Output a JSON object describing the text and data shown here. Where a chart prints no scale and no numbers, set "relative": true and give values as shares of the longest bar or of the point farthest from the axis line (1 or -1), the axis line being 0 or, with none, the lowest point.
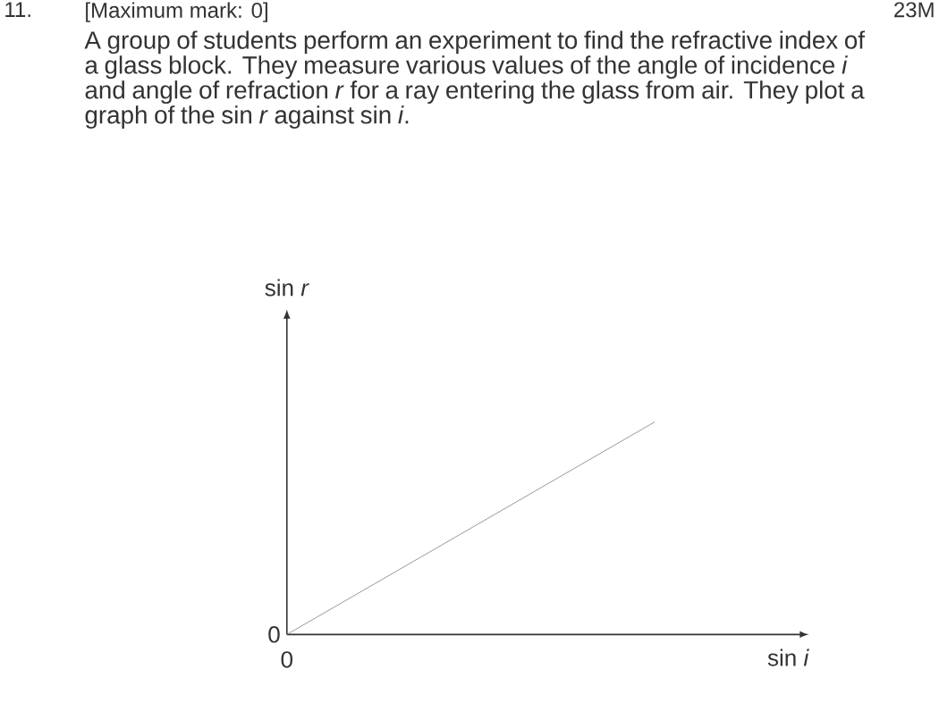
{
  "chart_data": {
    "type": "line",
    "title": "A group of students perform an experiment to find the refractive index of a glass block. They measure various values of the angle of incidence *i* and angle of refraction *r* for a ray entering the glass from air. They plot a graph of the sin *r* against sin *i*.",
    "annotations": [
      "11.",
      "[Maximum mark: 0]",
      "23M",
      "0",
      "0",
      "sin *r*"
    ],
    "xlabel": "sin *i*",
    "categories": [
      null,
      null
    ],
    "relative": true,
    "series": [
      {
        "color": "#7f7f7f",
        "values": [
          0,
          1
        ]
      }
    ],
    "marker": "none",
    "line_style": "solid"
  }
}
